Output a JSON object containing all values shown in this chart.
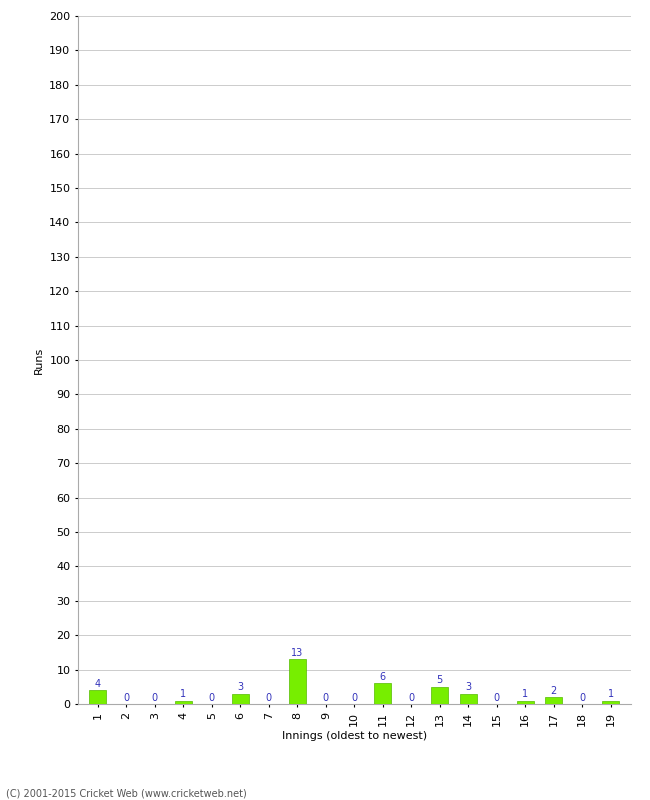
{
  "innings": [
    1,
    2,
    3,
    4,
    5,
    6,
    7,
    8,
    9,
    10,
    11,
    12,
    13,
    14,
    15,
    16,
    17,
    18,
    19
  ],
  "runs": [
    4,
    0,
    0,
    1,
    0,
    3,
    0,
    13,
    0,
    0,
    6,
    0,
    5,
    3,
    0,
    1,
    2,
    0,
    1
  ],
  "bar_color": "#77ee00",
  "bar_edge_color": "#55bb00",
  "ylabel": "Runs",
  "xlabel": "Innings (oldest to newest)",
  "ylim": [
    0,
    200
  ],
  "yticks": [
    0,
    10,
    20,
    30,
    40,
    50,
    60,
    70,
    80,
    90,
    100,
    110,
    120,
    130,
    140,
    150,
    160,
    170,
    180,
    190,
    200
  ],
  "grid_color": "#cccccc",
  "background_color": "#ffffff",
  "annotation_color": "#3333bb",
  "annotation_fontsize": 7,
  "tick_fontsize": 8,
  "ylabel_fontsize": 8,
  "xlabel_fontsize": 8,
  "footer": "(C) 2001-2015 Cricket Web (www.cricketweb.net)",
  "footer_fontsize": 7
}
